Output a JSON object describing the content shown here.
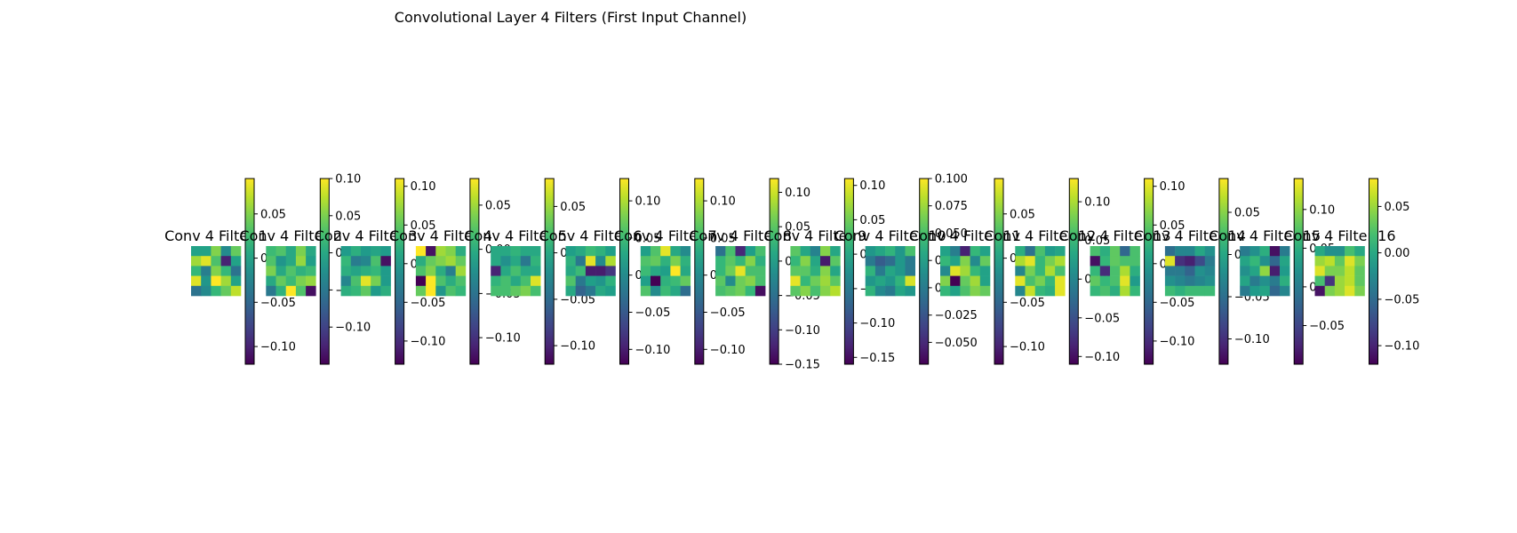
{
  "chart_data": {
    "type": "heatmap",
    "title": "Convolutional Layer 4 Filters (First Input Channel)",
    "colormap": "viridis",
    "panels": [
      {
        "title": "Conv 4 Filter 1",
        "vmin": -0.12,
        "vmax": 0.09,
        "cbar_ticks": [
          -0.1,
          -0.05,
          0.0,
          0.05
        ],
        "tick_labels": [
          "−0.10",
          "−0.05",
          "0.00",
          "0.05"
        ],
        "z": [
          [
            0.0,
            0.0,
            0.05,
            -0.02,
            0.04
          ],
          [
            0.06,
            0.08,
            0.03,
            -0.1,
            0.0
          ],
          [
            0.02,
            -0.03,
            0.05,
            0.02,
            -0.04
          ],
          [
            0.08,
            -0.01,
            0.09,
            0.06,
            0.0
          ],
          [
            -0.04,
            -0.02,
            0.02,
            0.04,
            0.07
          ]
        ]
      },
      {
        "title": "Conv 4 Filter 2",
        "vmin": -0.15,
        "vmax": 0.1,
        "cbar_ticks": [
          -0.1,
          -0.05,
          0.0,
          0.05,
          0.1
        ],
        "tick_labels": [
          "−0.10",
          "−0.05",
          "0.00",
          "0.05",
          "0.10"
        ],
        "z": [
          [
            0.02,
            0.03,
            0.0,
            0.05,
            0.0
          ],
          [
            0.03,
            -0.02,
            0.0,
            0.06,
            -0.01
          ],
          [
            0.05,
            0.0,
            0.03,
            0.01,
            0.02
          ],
          [
            0.0,
            0.04,
            0.02,
            0.05,
            0.06
          ],
          [
            -0.05,
            0.01,
            0.1,
            0.03,
            -0.14
          ]
        ]
      },
      {
        "title": "Conv 4 Filter 3",
        "vmin": -0.13,
        "vmax": 0.11,
        "cbar_ticks": [
          -0.1,
          -0.05,
          0.0,
          0.05,
          0.1
        ],
        "tick_labels": [
          "−0.10",
          "−0.05",
          "0.00",
          "0.05",
          "0.10"
        ],
        "z": [
          [
            0.0,
            0.02,
            0.0,
            0.01,
            0.0
          ],
          [
            0.03,
            -0.03,
            -0.02,
            0.04,
            -0.12
          ],
          [
            0.02,
            0.01,
            0.02,
            0.03,
            0.0
          ],
          [
            -0.02,
            0.04,
            0.1,
            0.06,
            0.0
          ],
          [
            0.02,
            0.03,
            0.05,
            0.0,
            0.02
          ]
        ]
      },
      {
        "title": "Conv 4 Filter 4",
        "vmin": -0.13,
        "vmax": 0.08,
        "cbar_ticks": [
          -0.1,
          -0.05,
          0.0,
          0.05
        ],
        "tick_labels": [
          "−0.10",
          "−0.05",
          "0.00",
          "0.05"
        ],
        "z": [
          [
            0.08,
            -0.12,
            0.05,
            0.04,
            0.0
          ],
          [
            0.0,
            0.03,
            0.04,
            0.05,
            0.03
          ],
          [
            0.02,
            0.04,
            0.0,
            -0.04,
            0.05
          ],
          [
            -0.13,
            0.08,
            0.02,
            0.0,
            0.02
          ],
          [
            0.03,
            0.08,
            -0.02,
            0.02,
            0.01
          ]
        ]
      },
      {
        "title": "Conv 4 Filter 5",
        "vmin": -0.12,
        "vmax": 0.08,
        "cbar_ticks": [
          -0.1,
          -0.05,
          0.0,
          0.05
        ],
        "tick_labels": [
          "−0.10",
          "−0.05",
          "0.00",
          "0.05"
        ],
        "z": [
          [
            0.0,
            0.0,
            0.01,
            0.0,
            0.0
          ],
          [
            0.0,
            -0.02,
            0.0,
            -0.04,
            0.01
          ],
          [
            -0.1,
            0.0,
            0.02,
            0.0,
            0.0
          ],
          [
            0.01,
            0.02,
            0.0,
            0.02,
            0.07
          ],
          [
            0.02,
            0.02,
            0.03,
            0.04,
            0.02
          ]
        ]
      },
      {
        "title": "Conv 4 Filter 6",
        "vmin": -0.12,
        "vmax": 0.13,
        "cbar_ticks": [
          -0.1,
          -0.05,
          0.0,
          0.05,
          0.1
        ],
        "tick_labels": [
          "−0.10",
          "−0.05",
          "0.00",
          "0.05",
          "0.10"
        ],
        "z": [
          [
            0.02,
            0.03,
            0.05,
            0.04,
            0.02
          ],
          [
            0.04,
            -0.02,
            0.12,
            0.0,
            0.1
          ],
          [
            0.03,
            0.05,
            -0.1,
            -0.1,
            -0.08
          ],
          [
            0.06,
            -0.02,
            0.02,
            0.01,
            0.04
          ],
          [
            0.03,
            -0.04,
            -0.02,
            0.03,
            0.02
          ]
        ]
      },
      {
        "title": "Conv 4 Filter 7",
        "vmin": -0.12,
        "vmax": 0.13,
        "cbar_ticks": [
          -0.1,
          -0.05,
          0.0,
          0.05,
          0.1
        ],
        "tick_labels": [
          "−0.10",
          "−0.05",
          "0.00",
          "0.05",
          "0.10"
        ],
        "z": [
          [
            0.02,
            0.06,
            0.12,
            0.03,
            0.0
          ],
          [
            0.06,
            0.07,
            0.04,
            0.08,
            0.04
          ],
          [
            0.05,
            0.03,
            0.02,
            0.13,
            0.03
          ],
          [
            0.02,
            -0.12,
            0.04,
            0.05,
            0.07
          ],
          [
            0.06,
            0.0,
            0.05,
            0.03,
            -0.03
          ]
        ]
      },
      {
        "title": "Conv 4 Filter 8",
        "vmin": -0.15,
        "vmax": 0.12,
        "cbar_ticks": [
          -0.15,
          -0.1,
          -0.05,
          0.0,
          0.05,
          0.1
        ],
        "tick_labels": [
          "−0.15",
          "−0.10",
          "−0.05",
          "0.00",
          "0.05",
          "0.10"
        ],
        "z": [
          [
            -0.05,
            0.04,
            -0.12,
            0.0,
            0.04
          ],
          [
            0.03,
            0.05,
            0.03,
            0.07,
            0.02
          ],
          [
            0.03,
            0.06,
            0.11,
            0.04,
            0.04
          ],
          [
            0.05,
            -0.02,
            0.06,
            0.07,
            0.04
          ],
          [
            0.04,
            0.05,
            0.06,
            0.03,
            -0.14
          ]
        ]
      },
      {
        "title": "Conv 4 Filter 9",
        "vmin": -0.16,
        "vmax": 0.11,
        "cbar_ticks": [
          -0.15,
          -0.1,
          -0.05,
          0.0,
          0.05,
          0.1
        ],
        "tick_labels": [
          "−0.15",
          "−0.10",
          "−0.05",
          "0.00",
          "0.05",
          "0.10"
        ],
        "z": [
          [
            0.04,
            0.0,
            -0.04,
            0.06,
            0.0
          ],
          [
            0.02,
            0.06,
            0.0,
            -0.14,
            0.04
          ],
          [
            0.04,
            0.04,
            0.01,
            0.06,
            0.0
          ],
          [
            0.1,
            0.02,
            0.05,
            0.07,
            0.04
          ],
          [
            0.04,
            0.06,
            0.03,
            0.06,
            0.08
          ]
        ]
      },
      {
        "title": "Conv 4 Filter 10",
        "vmin": -0.07,
        "vmax": 0.1,
        "cbar_ticks": [
          -0.05,
          -0.025,
          0.0,
          0.025,
          0.05,
          0.075,
          0.1
        ],
        "tick_labels": [
          "−0.050",
          "−0.025",
          "0.000",
          "0.025",
          "0.050",
          "0.075",
          "0.100"
        ],
        "z": [
          [
            0.02,
            0.03,
            0.04,
            0.02,
            0.05
          ],
          [
            0.0,
            -0.02,
            -0.01,
            0.02,
            0.0
          ],
          [
            0.04,
            0.0,
            0.03,
            0.02,
            0.0
          ],
          [
            0.02,
            0.03,
            0.02,
            0.04,
            0.09
          ],
          [
            0.04,
            0.01,
            0.0,
            0.03,
            0.02
          ]
        ]
      },
      {
        "title": "Conv 4 Filter 11",
        "vmin": -0.12,
        "vmax": 0.09,
        "cbar_ticks": [
          -0.1,
          -0.05,
          0.0,
          0.05
        ],
        "tick_labels": [
          "−0.10",
          "−0.05",
          "0.00",
          "0.05"
        ],
        "z": [
          [
            0.0,
            -0.03,
            -0.1,
            0.02,
            0.0
          ],
          [
            0.02,
            0.0,
            0.05,
            -0.02,
            0.04
          ],
          [
            -0.02,
            0.08,
            0.06,
            0.02,
            0.0
          ],
          [
            0.05,
            -0.12,
            0.04,
            0.06,
            0.0
          ],
          [
            0.02,
            0.0,
            0.03,
            0.05,
            0.04
          ]
        ]
      },
      {
        "title": "Conv 4 Filter 12",
        "vmin": -0.11,
        "vmax": 0.13,
        "cbar_ticks": [
          -0.1,
          -0.05,
          0.0,
          0.05,
          0.1
        ],
        "tick_labels": [
          "−0.10",
          "−0.05",
          "0.00",
          "0.05",
          "0.10"
        ],
        "z": [
          [
            0.04,
            -0.02,
            0.06,
            0.02,
            0.03
          ],
          [
            0.1,
            0.12,
            0.05,
            0.08,
            0.1
          ],
          [
            0.0,
            0.08,
            0.05,
            0.1,
            0.06
          ],
          [
            0.12,
            0.06,
            0.08,
            0.05,
            0.12
          ],
          [
            0.0,
            0.11,
            0.05,
            0.04,
            0.12
          ]
        ]
      },
      {
        "title": "Conv 4 Filter 13",
        "vmin": -0.13,
        "vmax": 0.11,
        "cbar_ticks": [
          -0.1,
          -0.05,
          0.0,
          0.05,
          0.1
        ],
        "tick_labels": [
          "−0.10",
          "−0.05",
          "0.00",
          "0.05",
          "0.10"
        ],
        "z": [
          [
            0.04,
            0.02,
            0.05,
            -0.05,
            0.04
          ],
          [
            -0.12,
            0.03,
            0.05,
            0.04,
            0.04
          ],
          [
            0.03,
            -0.1,
            0.04,
            0.08,
            0.02
          ],
          [
            0.05,
            0.03,
            0.04,
            0.1,
            0.0
          ],
          [
            0.03,
            0.04,
            0.02,
            0.08,
            0.03
          ]
        ]
      },
      {
        "title": "Conv 4 Filter 14",
        "vmin": -0.13,
        "vmax": 0.09,
        "cbar_ticks": [
          -0.1,
          -0.05,
          0.0,
          0.05
        ],
        "tick_labels": [
          "−0.10",
          "−0.05",
          "0.00",
          "0.05"
        ],
        "z": [
          [
            -0.05,
            -0.03,
            -0.03,
            0.0,
            -0.02
          ],
          [
            0.08,
            -0.1,
            -0.11,
            -0.08,
            -0.04
          ],
          [
            -0.04,
            -0.04,
            -0.06,
            -0.02,
            -0.03
          ],
          [
            -0.02,
            -0.03,
            -0.04,
            -0.03,
            -0.02
          ],
          [
            0.02,
            0.01,
            0.02,
            0.02,
            0.02
          ]
        ]
      },
      {
        "title": "Conv 4 Filter 15",
        "vmin": -0.1,
        "vmax": 0.14,
        "cbar_ticks": [
          -0.05,
          0.0,
          0.05,
          0.1
        ],
        "tick_labels": [
          "−0.05",
          "0.00",
          "0.05",
          "0.10"
        ],
        "z": [
          [
            0.0,
            0.02,
            0.05,
            -0.09,
            0.0
          ],
          [
            0.04,
            0.06,
            0.02,
            -0.02,
            0.04
          ],
          [
            0.02,
            0.04,
            0.1,
            -0.08,
            0.03
          ],
          [
            0.04,
            0.0,
            0.02,
            0.0,
            0.05
          ],
          [
            0.0,
            0.03,
            0.04,
            -0.02,
            0.01
          ]
        ]
      },
      {
        "title": "Conv 4 Filter 16",
        "vmin": -0.12,
        "vmax": 0.08,
        "cbar_ticks": [
          -0.1,
          -0.05,
          0.0,
          0.05
        ],
        "tick_labels": [
          "−0.10",
          "−0.05",
          "0.00",
          "0.05"
        ],
        "z": [
          [
            0.0,
            -0.02,
            -0.02,
            0.02,
            0.0
          ],
          [
            0.05,
            0.06,
            0.03,
            0.07,
            0.04
          ],
          [
            0.07,
            0.04,
            0.04,
            0.06,
            0.03
          ],
          [
            0.02,
            -0.09,
            0.05,
            0.06,
            0.03
          ],
          [
            -0.11,
            0.04,
            0.05,
            0.07,
            0.04
          ]
        ]
      }
    ]
  }
}
